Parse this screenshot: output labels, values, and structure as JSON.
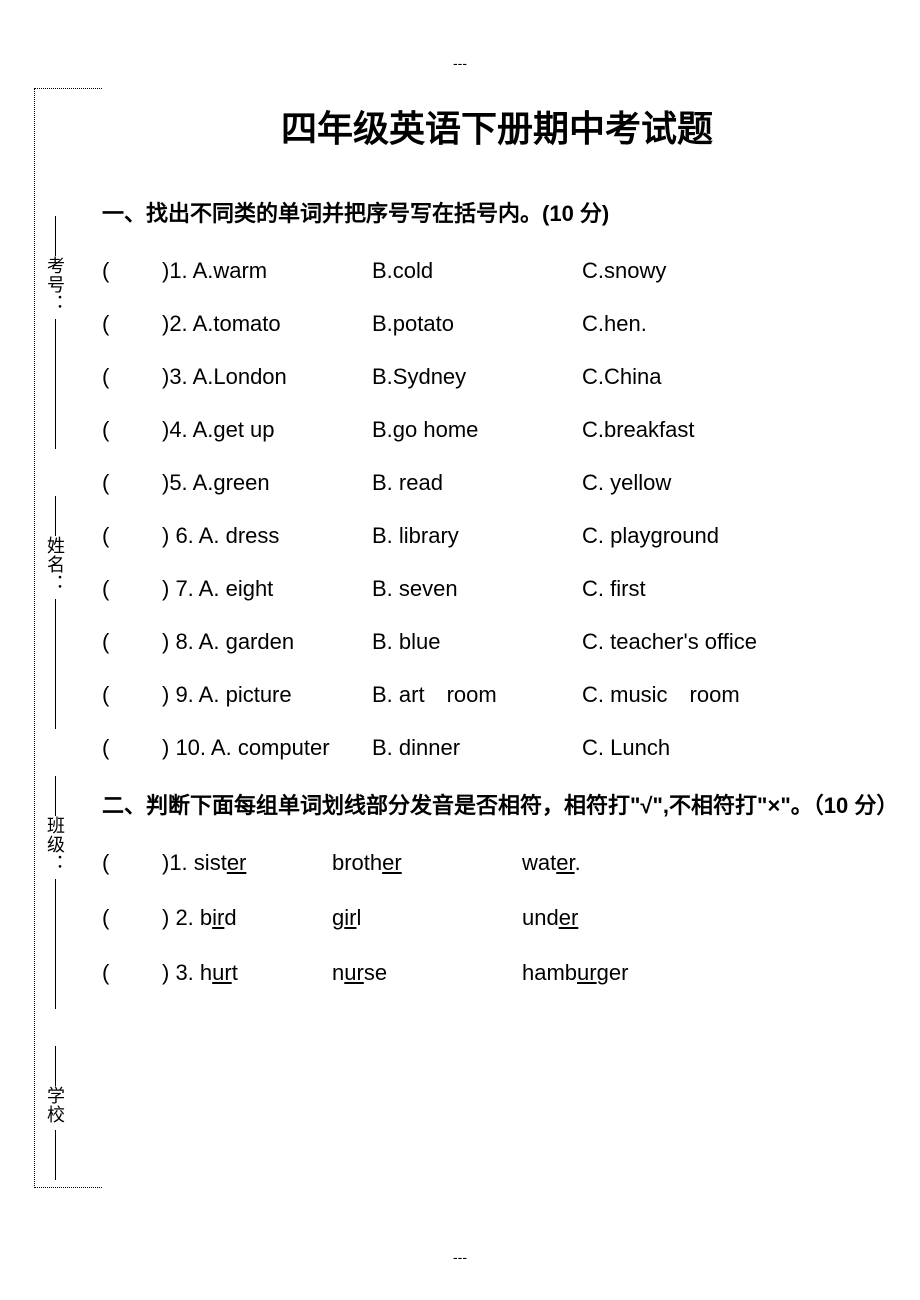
{
  "marks": {
    "top": "---",
    "bottom": "---"
  },
  "sidebar": {
    "examno": "考号：",
    "name": "姓名：",
    "class": "班级：",
    "school": "学校"
  },
  "title": "四年级英语下册期中考试题",
  "section1": {
    "heading": "一、找出不同类的单词并把序号写在括号内。(10 分)",
    "questions": [
      {
        "n": ")1. A.warm",
        "b": "B.cold",
        "c": "C.snowy"
      },
      {
        "n": ")2. A.tomato",
        "b": "B.potato",
        "c": "C.hen."
      },
      {
        "n": ")3. A.London",
        "b": "B.Sydney",
        "c": "C.China"
      },
      {
        "n": ")4. A.get up",
        "b": "B.go home",
        "c": "C.breakfast"
      },
      {
        "n": ")5. A.green",
        "b": "B. read",
        "c": "C. yellow"
      },
      {
        "n": ") 6. A. dress",
        "b": "B. library",
        "c": "C. playground"
      },
      {
        "n": ") 7. A. eight",
        "b": "B. seven",
        "c": "C. first"
      },
      {
        "n": ") 8. A. garden",
        "b": "B. blue",
        "c": "C. teacher's office"
      },
      {
        "n": ") 9. A. picture",
        "b": "B. art room",
        "c": "C. music room"
      },
      {
        "n": ") 10. A. computer",
        "b": "B. dinner",
        "c": "C. Lunch"
      }
    ]
  },
  "section2": {
    "heading": "二、判断下面每组单词划线部分发音是否相符，相符打\"√\",不相符打\"×\"。（10 分）",
    "questions": [
      {
        "n": ")1.",
        "w1_pre": " sist",
        "w1_u": "er",
        "w1_post": "",
        "w2_pre": "broth",
        "w2_u": "er",
        "w2_post": "",
        "w3_pre": "wat",
        "w3_u": "er",
        "w3_post": "."
      },
      {
        "n": ") 2.",
        "w1_pre": " b",
        "w1_u": "ir",
        "w1_post": "d",
        "w2_pre": "g",
        "w2_u": "ir",
        "w2_post": "l",
        "w3_pre": "und",
        "w3_u": "er",
        "w3_post": ""
      },
      {
        "n": ") 3.",
        "w1_pre": " h",
        "w1_u": "ur",
        "w1_post": "t",
        "w2_pre": "n",
        "w2_u": "ur",
        "w2_post": "se",
        "w3_pre": "hamb",
        "w3_u": "ur",
        "w3_post": "ger"
      }
    ]
  },
  "paren_open": "("
}
